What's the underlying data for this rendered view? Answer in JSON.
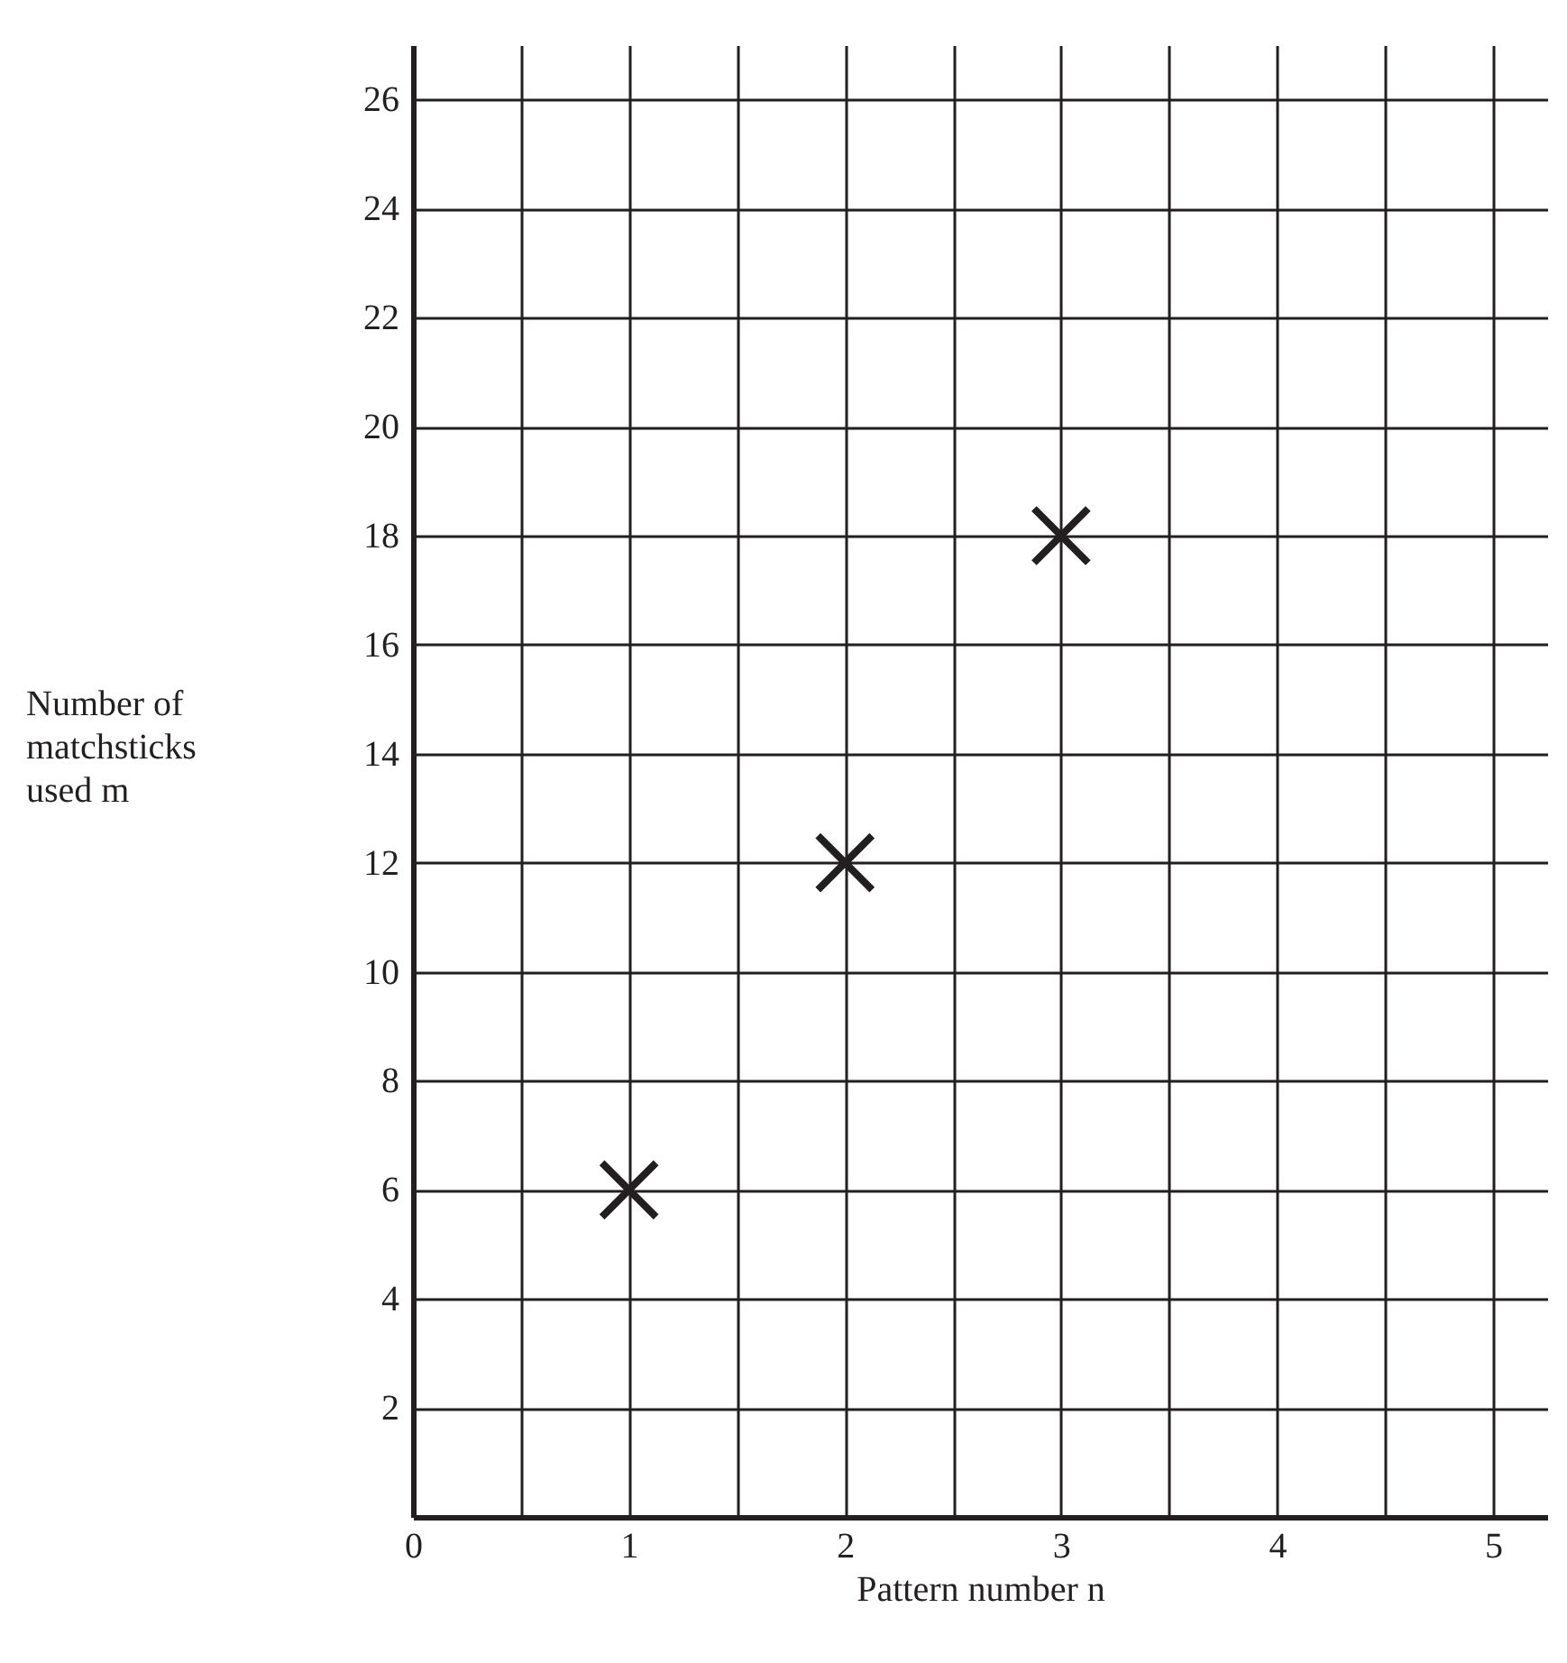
{
  "chart_data": {
    "type": "scatter",
    "xlabel": "Pattern number n",
    "ylabel": "Number of matchsticks used m",
    "x": [
      1,
      2,
      3
    ],
    "series": [
      {
        "color": "#231f20",
        "values": [
          6,
          12,
          18
        ]
      }
    ],
    "xlim": [
      0,
      5.25
    ],
    "xticks": [
      0,
      {
        "value": 0.5,
        "label": null
      },
      1,
      {
        "value": 1.5,
        "label": null
      },
      2,
      {
        "value": 2.5,
        "label": null
      },
      3,
      {
        "value": 3.5,
        "label": null
      },
      4,
      {
        "value": 4.5,
        "label": null
      },
      5
    ],
    "ylim": [
      0,
      27
    ],
    "yticks": [
      2,
      4,
      6,
      8,
      10,
      12,
      14,
      16,
      18,
      20,
      22,
      24,
      26
    ],
    "grid": true,
    "marker": "cross"
  }
}
